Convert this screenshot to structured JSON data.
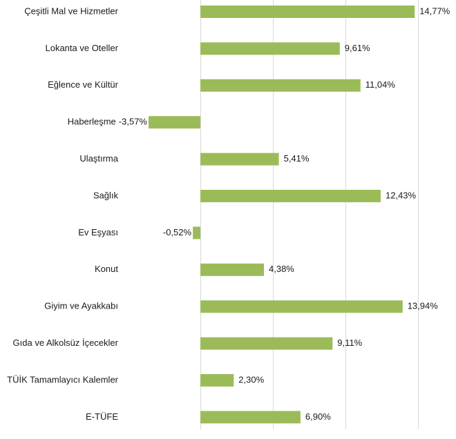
{
  "chart_data": {
    "type": "bar",
    "orientation": "horizontal",
    "categories": [
      "Çeşitli Mal ve Hizmetler",
      "Lokanta ve Oteller",
      "Eğlence ve Kültür",
      "Haberleşme",
      "Ulaştırma",
      "Sağlık",
      "Ev Eşyası",
      "Konut",
      "Giyim ve Ayakkabı",
      "Gıda ve Alkolsüz İçecekler",
      "TÜİK Tamamlayıcı Kalemler",
      "E-TÜFE"
    ],
    "values": [
      14.77,
      9.61,
      11.04,
      -3.57,
      5.41,
      12.43,
      -0.52,
      4.38,
      13.94,
      9.11,
      2.3,
      6.9
    ],
    "value_labels": [
      "14,77%",
      "9,61%",
      "11,04%",
      "-3,57%",
      "5,41%",
      "12,43%",
      "-0,52%",
      "4,38%",
      "13,94%",
      "9,11%",
      "2,30%",
      "6,90%"
    ],
    "xlim": [
      -5,
      15
    ],
    "grid_values": [
      -5,
      0,
      5,
      10,
      15
    ],
    "grid": true,
    "bar_color": "#9bbb59",
    "grid_color": "#d9d9d9"
  }
}
